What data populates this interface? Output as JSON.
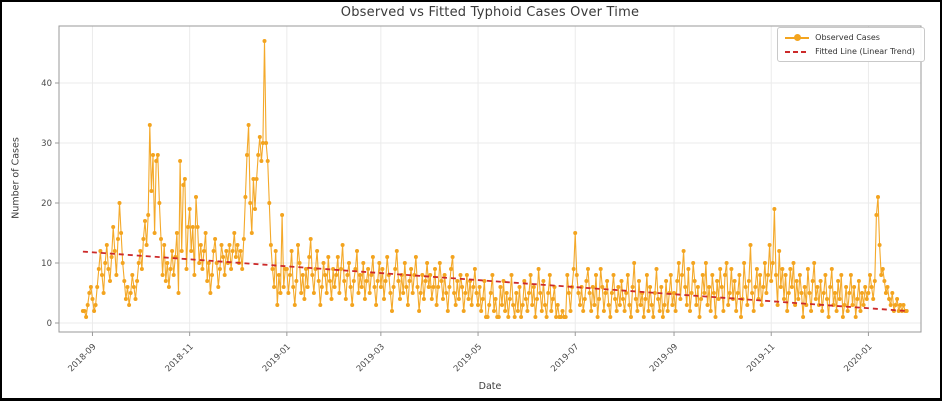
{
  "figure": {
    "title": "Observed vs Fitted Typhoid Cases Over Time",
    "xlabel": "Date",
    "ylabel": "Number of Cases"
  },
  "legend": {
    "observed_label": "Observed Cases",
    "fitted_label": "Fitted Line (Linear Trend)"
  },
  "colors": {
    "observed": "#f3a41f",
    "fitted": "#cc2a2a",
    "grid": "#ebebeb",
    "spine": "#9a9a9a",
    "tick_text": "#4a4a4a",
    "frame": "#000000"
  },
  "chart_data": {
    "type": "line",
    "title": "Observed vs Fitted Typhoid Cases Over Time",
    "xlabel": "Date",
    "ylabel": "Number of Cases",
    "grid": true,
    "legend_position": "upper right",
    "x_ticks": [
      "2018-09",
      "2018-11",
      "2019-01",
      "2019-03",
      "2019-05",
      "2019-07",
      "2019-09",
      "2019-11",
      "2020-01"
    ],
    "y_ticks": [
      0,
      10,
      20,
      30,
      40
    ],
    "ylim": [
      -1.5,
      49.5
    ],
    "xlim": [
      "2018-08-11",
      "2020-02-03"
    ],
    "series": [
      {
        "name": "Observed Cases",
        "style": "line+marker",
        "color": "#f3a41f",
        "start_date": "2018-08-26",
        "frequency": "daily",
        "values": [
          2,
          2,
          1,
          3,
          5,
          6,
          4,
          2,
          3,
          6,
          9,
          12,
          8,
          5,
          10,
          13,
          9,
          7,
          11,
          16,
          12,
          8,
          14,
          20,
          15,
          10,
          7,
          4,
          6,
          3,
          5,
          8,
          6,
          4,
          7,
          10,
          12,
          9,
          14,
          17,
          13,
          18,
          33,
          22,
          28,
          15,
          27,
          28,
          20,
          14,
          8,
          13,
          7,
          10,
          6,
          9,
          12,
          8,
          11,
          15,
          5,
          27,
          12,
          23,
          24,
          9,
          16,
          19,
          12,
          16,
          8,
          21,
          16,
          10,
          13,
          9,
          12,
          15,
          7,
          10,
          5,
          8,
          12,
          14,
          10,
          6,
          9,
          13,
          11,
          8,
          12,
          10,
          13,
          9,
          12,
          15,
          11,
          13,
          10,
          12,
          9,
          14,
          21,
          28,
          33,
          20,
          15,
          24,
          19,
          24,
          28,
          31,
          27,
          30,
          47,
          30,
          27,
          20,
          13,
          9,
          6,
          12,
          3,
          8,
          5,
          18,
          6,
          9,
          9,
          5,
          8,
          12,
          6,
          3,
          7,
          13,
          10,
          5,
          8,
          4,
          9,
          6,
          11,
          14,
          8,
          5,
          9,
          12,
          7,
          3,
          6,
          10,
          8,
          5,
          11,
          7,
          4,
          9,
          6,
          8,
          11,
          5,
          9,
          13,
          7,
          4,
          8,
          10,
          6,
          3,
          7,
          9,
          12,
          5,
          8,
          6,
          10,
          4,
          7,
          9,
          5,
          8,
          11,
          6,
          3,
          7,
          10,
          6,
          9,
          4,
          7,
          11,
          8,
          5,
          2,
          6,
          9,
          12,
          7,
          4,
          8,
          5,
          10,
          6,
          3,
          7,
          9,
          5,
          8,
          11,
          6,
          2,
          5,
          8,
          4,
          7,
          10,
          6,
          8,
          4,
          6,
          9,
          3,
          6,
          10,
          7,
          4,
          8,
          5,
          2,
          6,
          9,
          11,
          5,
          3,
          7,
          4,
          8,
          6,
          2,
          5,
          8,
          4,
          7,
          3,
          6,
          9,
          5,
          3,
          6,
          2,
          4,
          7,
          1,
          1,
          3,
          5,
          8,
          2,
          4,
          1,
          1,
          6,
          3,
          7,
          2,
          5,
          1,
          4,
          8,
          3,
          1,
          5,
          2,
          6,
          1,
          3,
          7,
          4,
          2,
          5,
          8,
          3,
          6,
          1,
          4,
          9,
          5,
          2,
          7,
          3,
          1,
          5,
          8,
          2,
          4,
          6,
          1,
          3,
          1,
          1,
          2,
          1,
          1,
          8,
          5,
          2,
          6,
          9,
          15,
          8,
          5,
          3,
          6,
          2,
          4,
          7,
          9,
          5,
          2,
          6,
          3,
          8,
          1,
          4,
          9,
          6,
          2,
          5,
          7,
          3,
          1,
          5,
          8,
          4,
          2,
          6,
          3,
          7,
          4,
          2,
          5,
          8,
          3,
          1,
          6,
          10,
          4,
          2,
          7,
          3,
          5,
          1,
          4,
          8,
          2,
          6,
          3,
          1,
          5,
          9,
          4,
          2,
          6,
          1,
          3,
          7,
          2,
          5,
          8,
          3,
          5,
          2,
          7,
          10,
          4,
          8,
          12,
          6,
          3,
          9,
          2,
          5,
          10,
          7,
          3,
          6,
          1,
          4,
          8,
          5,
          10,
          3,
          6,
          2,
          8,
          5,
          1,
          7,
          4,
          9,
          6,
          2,
          8,
          10,
          3,
          5,
          9,
          4,
          7,
          2,
          5,
          8,
          1,
          4,
          10,
          6,
          3,
          7,
          13,
          5,
          2,
          6,
          9,
          4,
          8,
          3,
          6,
          10,
          5,
          8,
          13,
          7,
          10,
          19,
          8,
          3,
          12,
          6,
          9,
          4,
          8,
          2,
          5,
          9,
          6,
          10,
          3,
          7,
          4,
          8,
          5,
          1,
          6,
          3,
          9,
          5,
          2,
          7,
          10,
          4,
          6,
          3,
          7,
          2,
          5,
          8,
          4,
          1,
          6,
          9,
          3,
          5,
          2,
          7,
          4,
          8,
          1,
          3,
          6,
          2,
          5,
          8,
          3,
          6,
          1,
          4,
          7,
          2,
          5,
          3,
          6,
          4,
          5,
          8,
          6,
          4,
          7,
          18,
          21,
          13,
          8,
          9,
          7,
          5,
          6,
          4,
          3,
          5,
          2,
          3,
          4,
          2,
          3,
          2,
          3,
          2,
          2
        ]
      },
      {
        "name": "Fitted Line (Linear Trend)",
        "style": "dashed-line",
        "color": "#cc2a2a",
        "points": [
          {
            "date": "2018-08-26",
            "value": 11.9
          },
          {
            "date": "2020-01-25",
            "value": 2.0
          }
        ]
      }
    ]
  }
}
